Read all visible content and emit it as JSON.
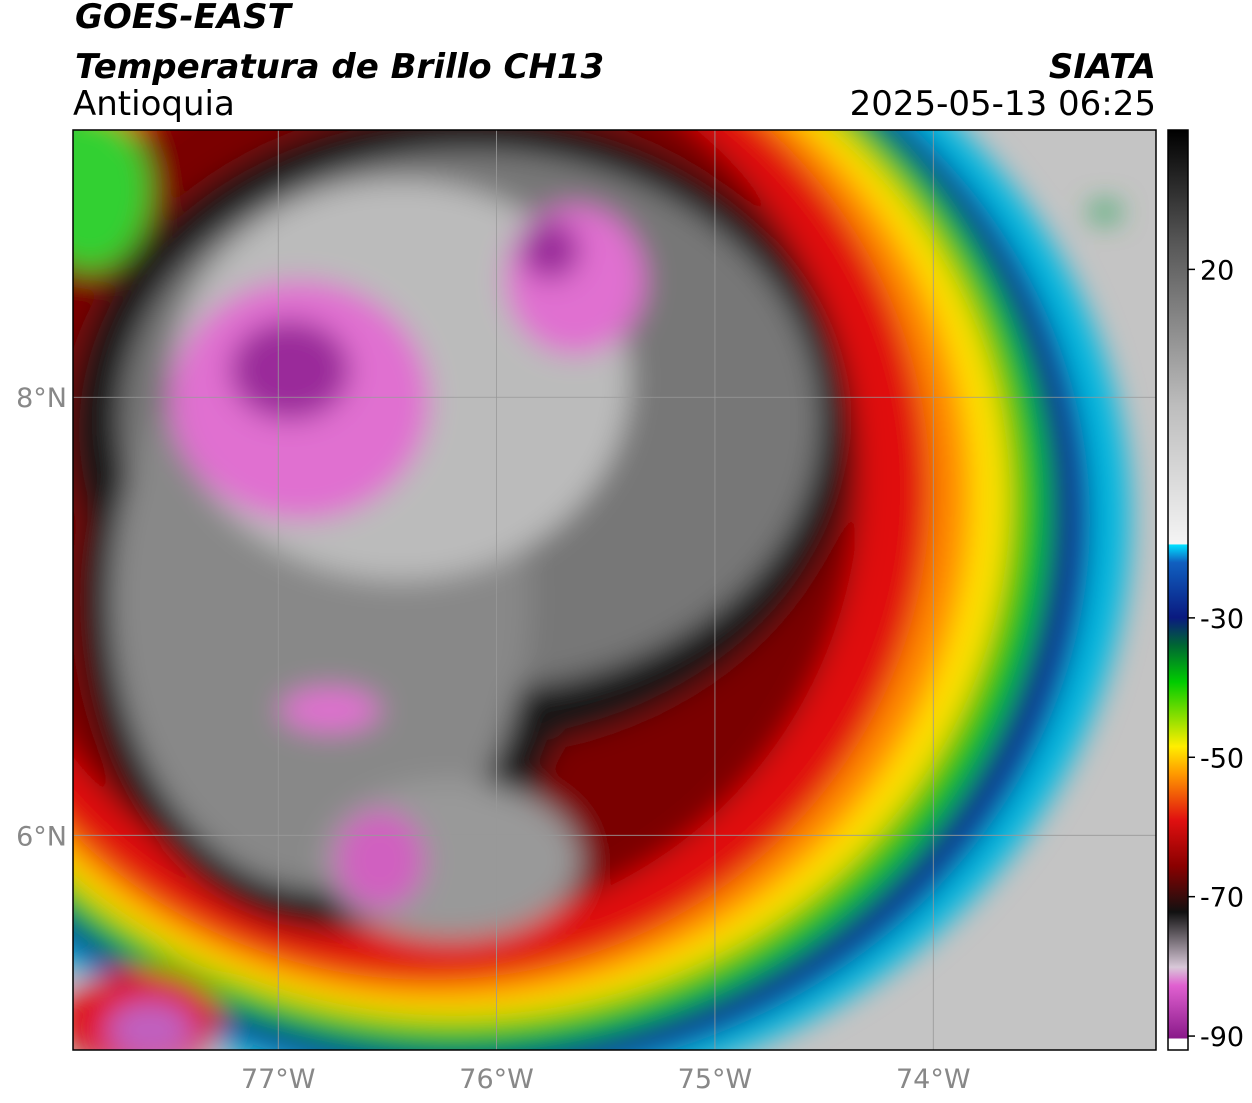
{
  "header": {
    "title": "GOES-EAST",
    "subtitle": "Temperatura de Brillo CH13",
    "region": "Antioquia",
    "source": "SIATA",
    "timestamp": "2025-05-13 06:25"
  },
  "map": {
    "xlim": [
      -77.94,
      -72.98
    ],
    "ylim": [
      5.02,
      9.22
    ],
    "xticks": [
      {
        "value": -77,
        "label": "77°W"
      },
      {
        "value": -76,
        "label": "76°W"
      },
      {
        "value": -75,
        "label": "75°W"
      },
      {
        "value": -74,
        "label": "74°W"
      }
    ],
    "yticks": [
      {
        "value": 8,
        "label": "8°N"
      },
      {
        "value": 6,
        "label": "6°N"
      }
    ]
  },
  "colorbar": {
    "lim": [
      -92,
      40
    ],
    "ticks": [
      20,
      -30,
      -50,
      -70,
      -90
    ]
  }
}
